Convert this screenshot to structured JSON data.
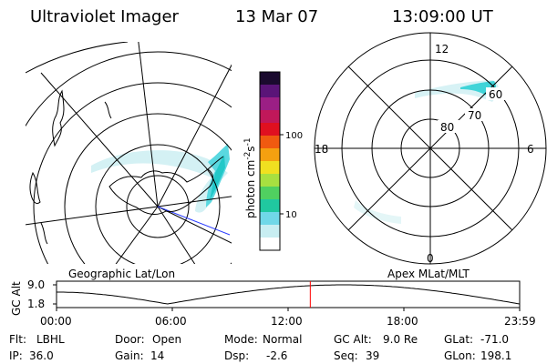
{
  "header": {
    "instrument": "Ultraviolet Imager",
    "date": "13 Mar 07",
    "time": "13:09:00 UT"
  },
  "left_panel": {
    "caption": "Geographic Lat/Lon"
  },
  "right_panel": {
    "caption": "Apex MLat/MLT",
    "mlt_labels": [
      "12",
      "18",
      "6",
      "0"
    ],
    "lat_labels": [
      "60",
      "70",
      "80"
    ]
  },
  "colorbar": {
    "label": "photon cm",
    "label_sup1": "-2",
    "label_mid": "s",
    "label_sup2": "-1",
    "ticks": [
      "100",
      "10"
    ],
    "colors_top_to_bottom": [
      "#1a0a2e",
      "#5a1478",
      "#9b1f85",
      "#c0185a",
      "#e01020",
      "#f05a10",
      "#f5a010",
      "#f0e020",
      "#a8e040",
      "#50d060",
      "#20c8a0",
      "#70d8e8",
      "#c8eef2",
      "#ffffff"
    ]
  },
  "altitude_plot": {
    "ylabel": "GC Alt",
    "yticks": [
      "9.0",
      "1.8"
    ],
    "xticks": [
      "00:00",
      "06:00",
      "12:00",
      "18:00",
      "23:59"
    ],
    "current_time_hours": 13.15,
    "marker_color": "#ff0000"
  },
  "status": {
    "row1": [
      {
        "key": "Flt:",
        "value": "LBHL"
      },
      {
        "key": "Door:",
        "value": "Open"
      },
      {
        "key": "Mode:",
        "value": "Normal"
      },
      {
        "key": "GC Alt:",
        "value": "9.0 Re"
      },
      {
        "key": "GLat:",
        "value": "-71.0"
      }
    ],
    "row2": [
      {
        "key": "IP:",
        "value": "36.0"
      },
      {
        "key": "Gain:",
        "value": "14"
      },
      {
        "key": "Dsp:",
        "value": "-2.6"
      },
      {
        "key": "Seq:",
        "value": "39"
      },
      {
        "key": "GLon:",
        "value": "198.1"
      }
    ]
  }
}
